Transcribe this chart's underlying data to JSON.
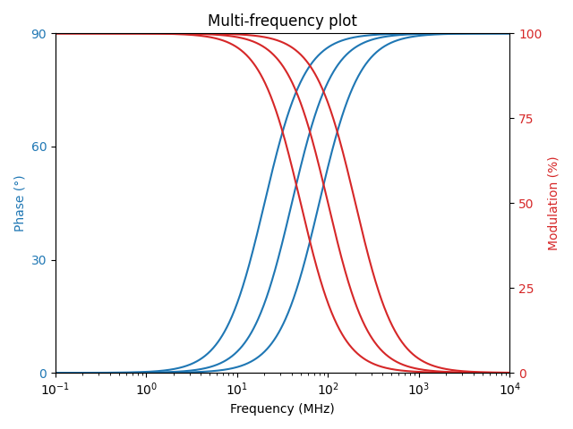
{
  "title": "Multi-frequency plot",
  "xlabel": "Frequency (MHz)",
  "ylabel_left": "Phase (°)",
  "ylabel_right": "Modulation (%)",
  "xlim_log": [
    -1,
    4
  ],
  "ylim_left": [
    0,
    90
  ],
  "ylim_right": [
    0,
    100
  ],
  "yticks_left": [
    0,
    30,
    60,
    90
  ],
  "yticks_right": [
    0,
    25,
    50,
    75,
    100
  ],
  "blue_centers": [
    20,
    40,
    80
  ],
  "red_centers": [
    50,
    100,
    200
  ],
  "k_blue": 4.5,
  "k_red": 4.5,
  "blue_color": "#1f77b4",
  "red_color": "#d62728",
  "linewidth": 1.5,
  "n_points": 1000
}
